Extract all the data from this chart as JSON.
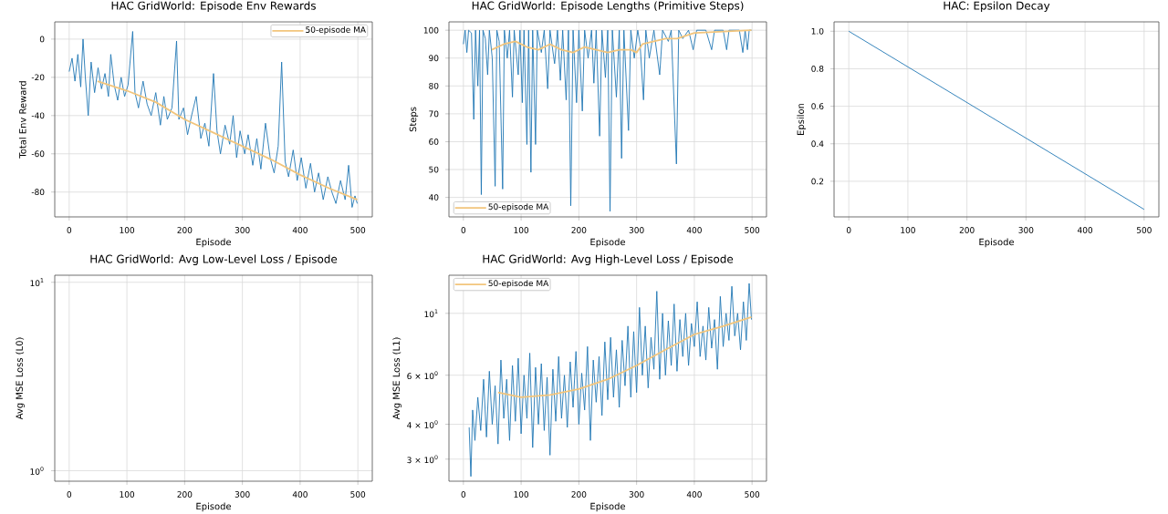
{
  "chart_data": [
    {
      "type": "line",
      "title": "HAC GridWorld: Episode Env Rewards",
      "xlabel": "Episode",
      "ylabel": "Total Env Reward",
      "xlim": [
        -25,
        525
      ],
      "ylim": [
        -93,
        9
      ],
      "xticks": [
        0,
        100,
        200,
        300,
        400,
        500
      ],
      "yticks": [
        -80,
        -60,
        -40,
        -20,
        0
      ],
      "grid": true,
      "legend": "top right",
      "series": [
        {
          "color": "#1f77b4",
          "x": [
            0,
            5,
            10,
            15,
            20,
            24,
            28,
            33,
            38,
            44,
            50,
            56,
            62,
            68,
            72,
            78,
            84,
            90,
            96,
            102,
            110,
            114,
            120,
            128,
            135,
            142,
            150,
            158,
            164,
            170,
            178,
            186,
            190,
            198,
            205,
            212,
            220,
            228,
            235,
            242,
            250,
            256,
            262,
            270,
            278,
            284,
            290,
            296,
            304,
            310,
            318,
            325,
            332,
            340,
            348,
            355,
            362,
            368,
            374,
            380,
            388,
            395,
            402,
            410,
            418,
            425,
            432,
            440,
            448,
            455,
            462,
            470,
            478,
            484,
            490,
            495,
            499
          ],
          "values": [
            -17,
            -10,
            -22,
            -8,
            -25,
            0,
            -20,
            -40,
            -12,
            -28,
            -15,
            -26,
            -18,
            -30,
            -8,
            -24,
            -32,
            -20,
            -30,
            -24,
            4,
            -28,
            -36,
            -22,
            -34,
            -40,
            -28,
            -45,
            -30,
            -42,
            -36,
            -1,
            -42,
            -36,
            -50,
            -40,
            -30,
            -52,
            -44,
            -56,
            -18,
            -48,
            -60,
            -45,
            -55,
            -40,
            -62,
            -48,
            -60,
            -50,
            -66,
            -52,
            -68,
            -44,
            -62,
            -70,
            -56,
            -12,
            -64,
            -72,
            -58,
            -74,
            -62,
            -78,
            -65,
            -80,
            -70,
            -84,
            -72,
            -80,
            -86,
            -74,
            -84,
            -66,
            -88,
            -82,
            -86
          ]
        },
        {
          "name": "50-episode MA",
          "color": "#f2c57c",
          "x": [
            49,
            100,
            150,
            200,
            250,
            300,
            350,
            400,
            450,
            499
          ],
          "values": [
            -22,
            -27,
            -33,
            -42,
            -49,
            -56,
            -63,
            -71,
            -78,
            -84
          ]
        }
      ]
    },
    {
      "type": "line",
      "title": "HAC GridWorld: Episode Lengths (Primitive Steps)",
      "xlabel": "Episode",
      "ylabel": "Steps",
      "xlim": [
        -25,
        525
      ],
      "ylim": [
        33,
        103
      ],
      "xticks": [
        0,
        100,
        200,
        300,
        400,
        500
      ],
      "yticks": [
        40,
        50,
        60,
        70,
        80,
        90,
        100
      ],
      "grid": true,
      "legend": "bottom left",
      "series": [
        {
          "color": "#1f77b4",
          "x": [
            0,
            3,
            6,
            9,
            14,
            18,
            21,
            25,
            28,
            31,
            34,
            38,
            42,
            45,
            50,
            55,
            58,
            62,
            68,
            71,
            76,
            80,
            85,
            88,
            95,
            98,
            102,
            105,
            110,
            113,
            117,
            120,
            125,
            128,
            135,
            140,
            146,
            150,
            158,
            163,
            168,
            172,
            178,
            182,
            186,
            190,
            196,
            200,
            206,
            210,
            216,
            222,
            226,
            230,
            236,
            240,
            246,
            250,
            254,
            258,
            265,
            270,
            274,
            278,
            286,
            290,
            296,
            302,
            306,
            312,
            316,
            322,
            330,
            340,
            345,
            355,
            360,
            369,
            373,
            380,
            390,
            398,
            404,
            420,
            430,
            435,
            450,
            456,
            460,
            478,
            484,
            488,
            492,
            495,
            499
          ],
          "values": [
            95,
            100,
            92,
            100,
            99,
            68,
            100,
            80,
            100,
            41,
            100,
            97,
            84,
            100,
            90,
            44,
            100,
            96,
            43,
            100,
            90,
            100,
            76,
            100,
            84,
            100,
            74,
            100,
            59,
            100,
            49,
            100,
            59,
            100,
            92,
            100,
            79,
            100,
            88,
            100,
            82,
            100,
            75,
            100,
            37,
            100,
            74,
            100,
            71,
            100,
            90,
            100,
            81,
            100,
            62,
            100,
            83,
            100,
            35,
            100,
            76,
            100,
            54,
            100,
            64,
            100,
            90,
            100,
            95,
            75,
            100,
            90,
            100,
            84,
            100,
            96,
            100,
            52,
            100,
            97,
            100,
            93,
            100,
            100,
            93,
            100,
            100,
            93,
            100,
            100,
            92,
            100,
            93,
            100,
            100
          ]
        },
        {
          "name": "50-episode MA",
          "color": "#f2c57c",
          "x": [
            49,
            70,
            90,
            110,
            130,
            150,
            170,
            190,
            210,
            230,
            250,
            270,
            290,
            300,
            310,
            330,
            350,
            370,
            400,
            450,
            499
          ],
          "values": [
            93,
            95,
            96,
            94,
            93,
            95,
            93,
            92,
            94,
            93,
            92,
            93,
            93,
            92,
            95,
            96,
            97,
            97,
            99,
            99.5,
            100
          ]
        }
      ]
    },
    {
      "type": "line",
      "title": "HAC: Epsilon Decay",
      "xlabel": "Episode",
      "ylabel": "Epsilon",
      "xlim": [
        -25,
        525
      ],
      "ylim": [
        0.01,
        1.05
      ],
      "xticks": [
        0,
        100,
        200,
        300,
        400,
        500
      ],
      "yticks": [
        0.2,
        0.4,
        0.6,
        0.8,
        {
          "value": 1,
          "label": "1.0"
        }
      ],
      "grid": true,
      "series": [
        {
          "color": "#1f77b4",
          "x": [
            0,
            500
          ],
          "values": [
            1.0,
            0.05
          ]
        }
      ]
    },
    {
      "type": "line",
      "title": "HAC GridWorld: Avg Low-Level Loss / Episode",
      "xlabel": "Episode",
      "ylabel": "Avg MSE Loss (L0)",
      "xlim": [
        -25,
        525
      ],
      "ylim": [
        0.88,
        10.9
      ],
      "log": "y",
      "xticks": [
        0,
        100,
        200,
        300,
        400,
        500
      ],
      "yticks": [
        {
          "value": 1,
          "label": "10$^{0}$"
        },
        {
          "value": 10,
          "label": "10$^{1}$"
        }
      ],
      "grid": true
    },
    {
      "type": "line",
      "title": "HAC GridWorld: Avg High-Level Loss / Episode",
      "xlabel": "Episode",
      "ylabel": "Avg MSE Loss (L1)",
      "xlim": [
        -25,
        525
      ],
      "ylim": [
        2.5,
        13.7
      ],
      "log": "y",
      "xticks": [
        0,
        100,
        200,
        300,
        400,
        500
      ],
      "yticks": [
        {
          "value": 3,
          "label": "3 × 10$^{0}$"
        },
        {
          "value": 4,
          "label": "4 × 10$^{0}$"
        },
        {
          "value": 6,
          "label": "6 × 10$^{0}$"
        },
        {
          "value": 10,
          "label": "10$^{1}$"
        }
      ],
      "grid": true,
      "legend": "top left",
      "series": [
        {
          "color": "#1f77b4",
          "x": [
            10,
            13,
            16,
            20,
            25,
            30,
            35,
            40,
            45,
            50,
            55,
            60,
            65,
            70,
            75,
            80,
            85,
            90,
            95,
            100,
            105,
            110,
            115,
            120,
            125,
            130,
            135,
            140,
            145,
            150,
            155,
            160,
            165,
            170,
            175,
            180,
            185,
            190,
            195,
            200,
            205,
            210,
            215,
            220,
            225,
            230,
            235,
            240,
            245,
            250,
            255,
            260,
            265,
            270,
            275,
            280,
            285,
            290,
            295,
            300,
            305,
            310,
            315,
            320,
            325,
            330,
            335,
            340,
            345,
            350,
            355,
            360,
            365,
            370,
            375,
            380,
            385,
            390,
            395,
            400,
            405,
            410,
            415,
            420,
            425,
            430,
            435,
            440,
            445,
            450,
            455,
            460,
            465,
            470,
            475,
            480,
            485,
            490,
            495,
            499
          ],
          "values": [
            3.9,
            2.6,
            4.5,
            3.5,
            5.0,
            3.8,
            5.8,
            3.6,
            6.2,
            4.0,
            5.5,
            3.4,
            6.8,
            4.2,
            5.8,
            3.5,
            6.5,
            4.1,
            6.9,
            3.7,
            6.0,
            4.2,
            7.2,
            3.3,
            6.4,
            4.0,
            6.6,
            3.8,
            5.9,
            3.1,
            6.3,
            4.1,
            7.0,
            4.2,
            6.0,
            3.9,
            6.7,
            4.6,
            7.3,
            4.0,
            6.1,
            4.5,
            7.6,
            3.5,
            6.8,
            4.8,
            7.0,
            4.3,
            7.9,
            4.9,
            8.2,
            5.0,
            7.4,
            4.6,
            8.0,
            5.5,
            9.0,
            5.0,
            8.6,
            5.2,
            10.5,
            6.0,
            9.0,
            5.4,
            8.2,
            6.3,
            12.0,
            5.8,
            10.0,
            6.0,
            9.4,
            6.5,
            10.8,
            6.2,
            9.5,
            7.0,
            10.0,
            6.5,
            9.2,
            7.6,
            11.0,
            7.0,
            9.0,
            6.8,
            10.5,
            7.5,
            9.5,
            6.3,
            11.5,
            7.6,
            10.0,
            8.0,
            12.5,
            8.3,
            10.0,
            7.4,
            11.0,
            8.0,
            12.8,
            9.5
          ]
        },
        {
          "name": "50-episode MA",
          "color": "#f2c57c",
          "x": [
            60,
            100,
            150,
            200,
            250,
            300,
            350,
            400,
            450,
            499
          ],
          "values": [
            5.2,
            5.0,
            5.1,
            5.35,
            5.8,
            6.5,
            7.4,
            8.4,
            9.0,
            9.7
          ]
        }
      ]
    }
  ]
}
